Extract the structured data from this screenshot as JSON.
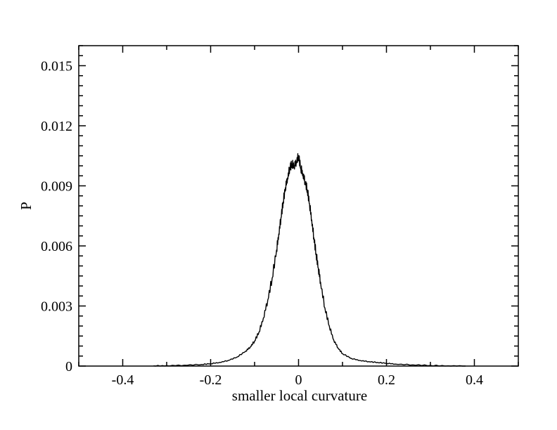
{
  "chart_data": {
    "type": "line",
    "title": "",
    "xlabel": "smaller local curvature",
    "ylabel": "P",
    "xlim": [
      -0.5,
      0.5
    ],
    "ylim": [
      0,
      0.016
    ],
    "x_ticks": [
      -0.4,
      -0.2,
      0,
      0.2,
      0.4
    ],
    "x_tick_labels": [
      "-0.4",
      "-0.2",
      "0",
      "0.2",
      "0.4"
    ],
    "y_ticks": [
      0,
      0.003,
      0.006,
      0.009,
      0.012,
      0.015
    ],
    "y_tick_labels": [
      "0",
      "0.003",
      "0.006",
      "0.009",
      "0.012",
      "0.015"
    ],
    "grid": false,
    "legend": "none",
    "line_color": "#000000",
    "series": [
      {
        "x": [
          -0.33,
          -0.3,
          -0.26,
          -0.22,
          -0.2,
          -0.18,
          -0.16,
          -0.14,
          -0.12,
          -0.11,
          -0.1,
          -0.09,
          -0.08,
          -0.07,
          -0.06,
          -0.05,
          -0.045,
          -0.04,
          -0.035,
          -0.03,
          -0.025,
          -0.02,
          -0.015,
          -0.01,
          -0.005,
          0.0,
          0.005,
          0.01,
          0.015,
          0.02,
          0.025,
          0.03,
          0.035,
          0.04,
          0.045,
          0.05,
          0.06,
          0.07,
          0.08,
          0.09,
          0.1,
          0.12,
          0.14,
          0.16,
          0.18,
          0.2,
          0.22,
          0.26,
          0.3,
          0.34,
          0.38
        ],
        "y": [
          1e-05,
          2e-05,
          4e-05,
          8e-05,
          0.00012,
          0.00018,
          0.00028,
          0.00045,
          0.00075,
          0.00095,
          0.00125,
          0.0017,
          0.0024,
          0.0033,
          0.0044,
          0.0058,
          0.0066,
          0.0074,
          0.0082,
          0.0089,
          0.0094,
          0.0099,
          0.0101,
          0.01,
          0.0102,
          0.0105,
          0.0099,
          0.0096,
          0.0092,
          0.0088,
          0.0081,
          0.0073,
          0.0064,
          0.0056,
          0.0049,
          0.0042,
          0.0029,
          0.002,
          0.0013,
          0.0009,
          0.00062,
          0.00038,
          0.00028,
          0.00022,
          0.00018,
          0.00014,
          0.0001,
          6e-05,
          3e-05,
          1e-05,
          0.0
        ]
      }
    ]
  }
}
